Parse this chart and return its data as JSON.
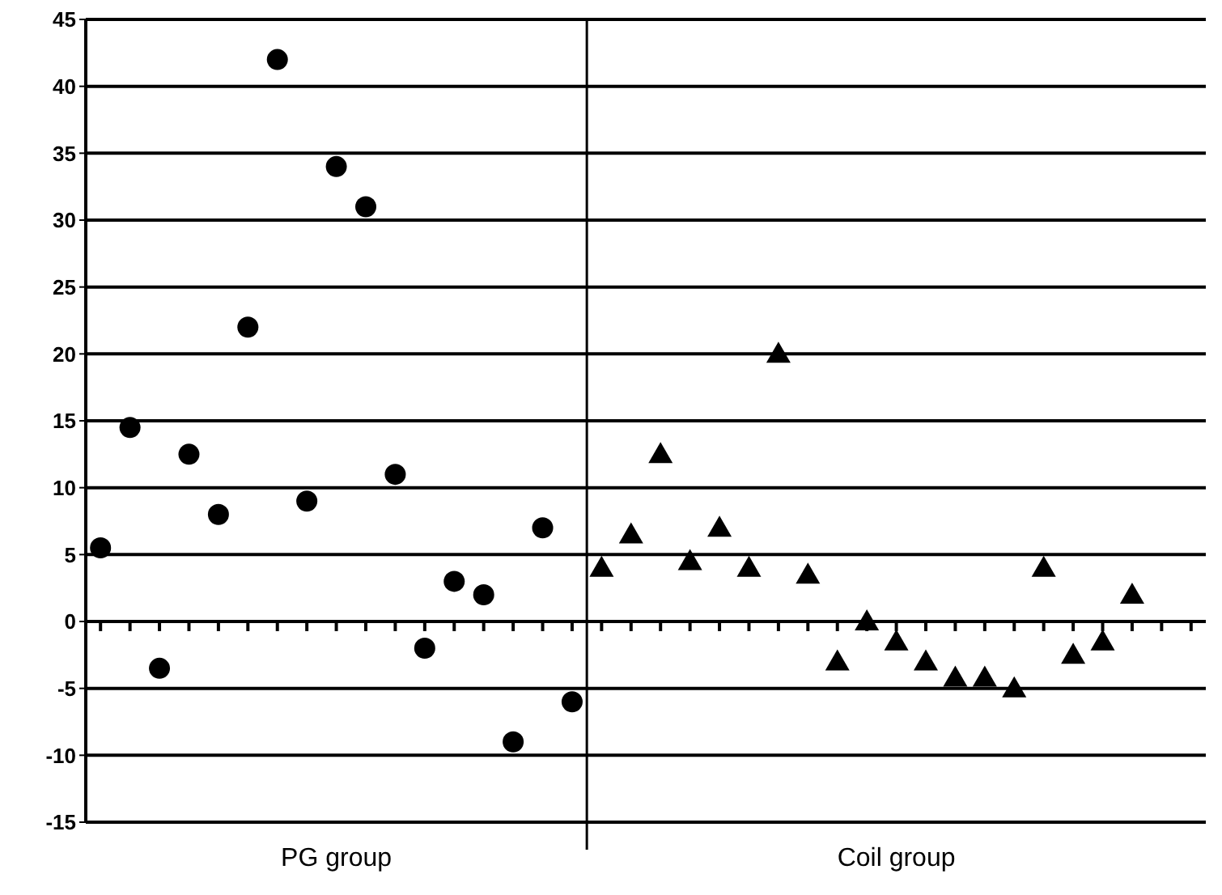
{
  "chart_data": {
    "type": "scatter",
    "annotations": [
      "PG group",
      "Coil group"
    ],
    "categories": [
      null,
      null,
      null,
      null,
      null,
      null,
      null,
      null,
      null,
      null,
      null,
      null,
      null,
      null,
      null,
      null,
      null,
      null,
      null,
      null,
      null,
      null,
      null,
      null,
      null,
      null,
      null,
      null,
      null,
      null,
      null,
      null,
      null,
      null,
      null,
      null,
      null,
      null
    ],
    "ylim": [
      -15,
      45
    ],
    "yticks": [
      -15,
      -10,
      -5,
      0,
      5,
      10,
      15,
      20,
      25,
      30,
      35,
      40,
      45
    ],
    "grid": "y",
    "series": [
      {
        "color": "#000000",
        "marker": "circle",
        "values": [
          5.5,
          14.5,
          -3.5,
          12.5,
          8,
          22,
          42,
          9,
          34,
          31,
          11,
          -2,
          3,
          2,
          -9,
          7,
          -6,
          null,
          null,
          null,
          null,
          null,
          null,
          null,
          null,
          null,
          null,
          null,
          null,
          null,
          null,
          null,
          null,
          null,
          null,
          null,
          null,
          null
        ]
      },
      {
        "color": "#000000",
        "marker": "triangle",
        "values": [
          null,
          null,
          null,
          null,
          null,
          null,
          null,
          null,
          null,
          null,
          null,
          null,
          null,
          null,
          null,
          null,
          null,
          4,
          6.5,
          12.5,
          4.5,
          7,
          4,
          20,
          3.5,
          -3,
          0,
          -1.5,
          -3,
          -4.2,
          -4.2,
          -5,
          4,
          -2.5,
          -1.5,
          2,
          null,
          null
        ]
      }
    ]
  }
}
